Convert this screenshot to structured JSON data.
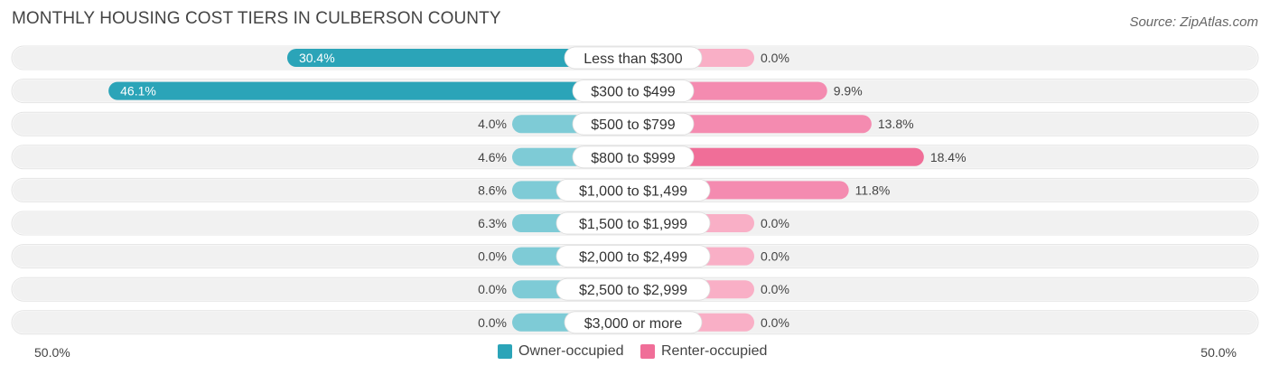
{
  "title": "MONTHLY HOUSING COST TIERS IN CULBERSON COUNTY",
  "source": "Source: ZipAtlas.com",
  "colors": {
    "owner": "#2ba4b8",
    "owner_light": "#7ecbd6",
    "renter": "#f06e98",
    "renter_light": "#f9afc6",
    "track": "#f1f1f1"
  },
  "axis": {
    "left_label": "50.0%",
    "right_label": "50.0%"
  },
  "legend": {
    "owner_label": "Owner-occupied",
    "renter_label": "Renter-occupied"
  },
  "chart_data": {
    "type": "bar",
    "orientation": "diverging-horizontal",
    "categories": [
      "Less than $300",
      "$300 to $499",
      "$500 to $799",
      "$800 to $999",
      "$1,000 to $1,499",
      "$1,500 to $1,999",
      "$2,000 to $2,499",
      "$2,500 to $2,999",
      "$3,000 or more"
    ],
    "series": [
      {
        "name": "Owner-occupied",
        "values": [
          30.4,
          46.1,
          4.0,
          4.6,
          8.6,
          6.3,
          0.0,
          0.0,
          0.0
        ],
        "labels": [
          "30.4%",
          "46.1%",
          "4.0%",
          "4.6%",
          "8.6%",
          "6.3%",
          "0.0%",
          "0.0%",
          "0.0%"
        ]
      },
      {
        "name": "Renter-occupied",
        "values": [
          0.0,
          9.9,
          13.8,
          18.4,
          11.8,
          0.0,
          0.0,
          0.0,
          0.0
        ],
        "labels": [
          "0.0%",
          "9.9%",
          "13.8%",
          "18.4%",
          "11.8%",
          "0.0%",
          "0.0%",
          "0.0%",
          "0.0%"
        ]
      }
    ],
    "xlim": [
      -50,
      50
    ],
    "legend_position": "bottom-center"
  }
}
